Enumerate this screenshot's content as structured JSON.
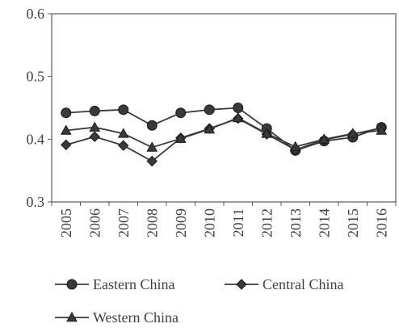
{
  "chart_data": {
    "type": "line",
    "title": "",
    "xlabel": "",
    "ylabel": "",
    "categories": [
      "2005",
      "2006",
      "2007",
      "2008",
      "2009",
      "2010",
      "2011",
      "2012",
      "2013",
      "2014",
      "2015",
      "2016"
    ],
    "ylim": [
      0.3,
      0.6
    ],
    "yticks": [
      0.3,
      0.4,
      0.5,
      0.6
    ],
    "ytick_labels": [
      "0.3",
      "0.4",
      "0.5",
      "0.6"
    ],
    "grid": false,
    "legend_position": "bottom",
    "series": [
      {
        "name": "Eastern China",
        "marker": "circle",
        "color": "#3a3a3a",
        "values": [
          0.442,
          0.445,
          0.447,
          0.422,
          0.442,
          0.447,
          0.45,
          0.417,
          0.382,
          0.397,
          0.403,
          0.419
        ]
      },
      {
        "name": "Central China",
        "marker": "diamond",
        "color": "#3a3a3a",
        "values": [
          0.391,
          0.404,
          0.39,
          0.365,
          0.402,
          0.417,
          0.433,
          0.408,
          0.383,
          0.399,
          0.408,
          0.418
        ]
      },
      {
        "name": "Western China",
        "marker": "triangle",
        "color": "#3a3a3a",
        "values": [
          0.414,
          0.419,
          0.409,
          0.387,
          0.401,
          0.416,
          0.434,
          0.409,
          0.388,
          0.4,
          0.409,
          0.414
        ]
      }
    ]
  }
}
